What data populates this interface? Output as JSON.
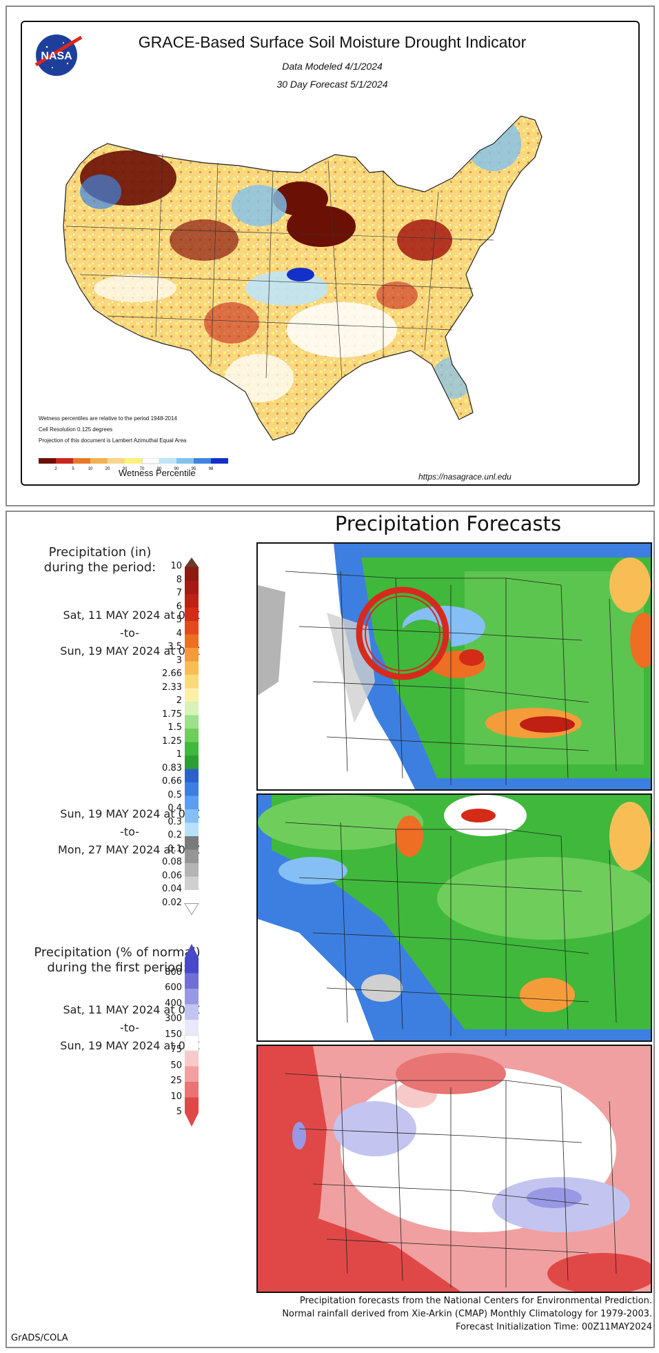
{
  "grace": {
    "title": "GRACE-Based Surface Soil Moisture Drought Indicator",
    "modeled": "Data Modeled 4/1/2024",
    "forecast": "30 Day Forecast 5/1/2024",
    "note1": "Wetness percentiles are relative to the period 1948-2014",
    "note2": "Cell Resolution 0.125 degrees",
    "note3": "Projection of this document is Lambert Azimuthal Equal Area",
    "scale_title": "Wetness Percentile",
    "scale_ticks": [
      "2",
      "5",
      "10",
      "20",
      "30",
      "70",
      "80",
      "90",
      "95",
      "98"
    ],
    "scale_colors": [
      "#6b1005",
      "#c8281b",
      "#e57b2a",
      "#f2b252",
      "#f7d88b",
      "#fff27a",
      "#ffffff",
      "#bfe4f7",
      "#82c2ee",
      "#3f84e0",
      "#1331c8"
    ],
    "url": "https://nasagrace.unl.edu",
    "logo_text": "NASA"
  },
  "precip": {
    "title": "Precipitation Forecasts",
    "amount_label_1": "Precipitation (in)",
    "amount_label_2": "during the period:",
    "period1_start": "Sat, 11 MAY 2024 at 00Z",
    "to": "-to-",
    "period1_end": "Sun, 19 MAY 2024 at 00Z",
    "period2_start": "Sun, 19 MAY 2024 at 00Z",
    "period2_end": "Mon, 27 MAY 2024 at 00Z",
    "pct_label_1": "Precipitation (% of normal)",
    "pct_label_2": "during the first period:",
    "amount_ticks": [
      "10",
      "8",
      "7",
      "6",
      "5",
      "4",
      "3.5",
      "3",
      "2.66",
      "2.33",
      "2",
      "1.75",
      "1.5",
      "1.25",
      "1",
      "0.83",
      "0.66",
      "0.5",
      "0.4",
      "0.3",
      "0.2",
      "0.1",
      "0.08",
      "0.06",
      "0.04",
      "0.02"
    ],
    "amount_colors": [
      "#6a3a2a",
      "#8b1a10",
      "#a51a12",
      "#c01f14",
      "#d42a18",
      "#e4481c",
      "#ee6e24",
      "#f59c3a",
      "#f8be55",
      "#fbd97a",
      "#fcf0a8",
      "#d8f3b8",
      "#9fe08a",
      "#6fcd5c",
      "#3fb83c",
      "#2d9e34",
      "#2a62c8",
      "#3c7fe0",
      "#5c9ef0",
      "#86bff5",
      "#b7e0fa",
      "#7a7a7a",
      "#969696",
      "#b4b4b4",
      "#d0d0d0",
      "#ffffff"
    ],
    "pct_ticks": [
      "800",
      "600",
      "400",
      "300",
      "150",
      "75",
      "50",
      "25",
      "10",
      "5"
    ],
    "pct_colors": [
      "#4848c8",
      "#6f6fd6",
      "#9898e4",
      "#c4c4f0",
      "#e8e8fa",
      "#ffffff",
      "#f7caca",
      "#f0a0a0",
      "#e87474",
      "#e04848"
    ],
    "footer1": "Precipitation forecasts from the National Centers for Environmental Prediction.",
    "footer2": "Normal rainfall derived from Xie-Arkin (CMAP) Monthly Climatology for 1979-2003.",
    "footer3": "Forecast Initialization Time: 00Z11MAY2024",
    "credit": "GrADS/COLA"
  }
}
